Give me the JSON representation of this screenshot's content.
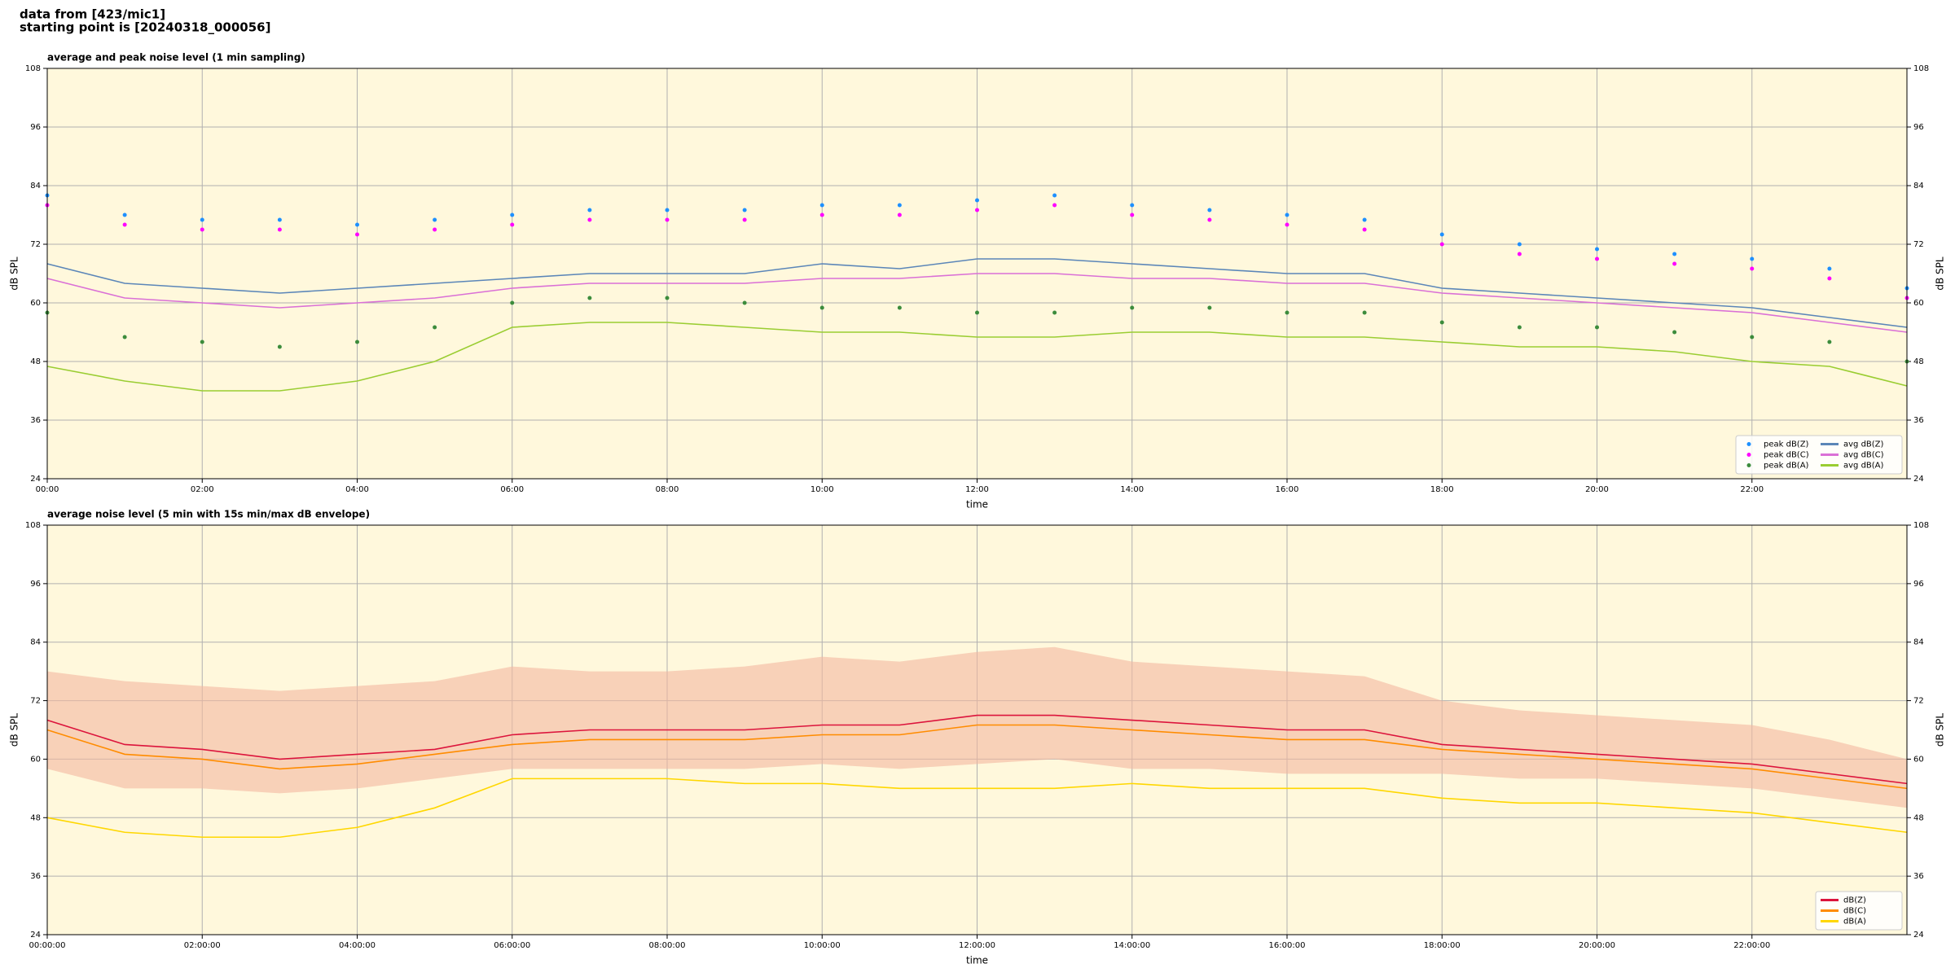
{
  "header": {
    "lines": [
      "data from [423/mic1]",
      "starting point is [20240318_000056]"
    ]
  },
  "chart_data": [
    {
      "type": "line",
      "title": "average and peak noise level (1 min sampling)",
      "xlabel": "time",
      "ylabel": "dB SPL",
      "x": [
        0,
        1,
        2,
        3,
        4,
        5,
        6,
        7,
        8,
        9,
        10,
        11,
        12,
        13,
        14,
        15,
        16,
        17,
        18,
        19,
        20,
        21,
        22,
        23,
        24
      ],
      "xlim": [
        0,
        24
      ],
      "xticks": [
        {
          "value": 0,
          "label": "00:00"
        },
        {
          "value": 2,
          "label": "02:00"
        },
        {
          "value": 4,
          "label": "04:00"
        },
        {
          "value": 6,
          "label": "06:00"
        },
        {
          "value": 8,
          "label": "08:00"
        },
        {
          "value": 10,
          "label": "10:00"
        },
        {
          "value": 12,
          "label": "12:00"
        },
        {
          "value": 14,
          "label": "14:00"
        },
        {
          "value": 16,
          "label": "16:00"
        },
        {
          "value": 18,
          "label": "18:00"
        },
        {
          "value": 20,
          "label": "20:00"
        },
        {
          "value": 22,
          "label": "22:00"
        }
      ],
      "ylim": [
        24,
        108
      ],
      "yticks": [
        24,
        36,
        48,
        60,
        72,
        84,
        96,
        108
      ],
      "grid": true,
      "legend": "lower right",
      "legend_columns": 2,
      "series": [
        {
          "name": "peak dB(Z)",
          "kind": "scatter",
          "color": "#1e90ff",
          "values": [
            82,
            78,
            77,
            77,
            76,
            77,
            78,
            79,
            79,
            79,
            80,
            80,
            81,
            82,
            80,
            79,
            78,
            77,
            74,
            72,
            71,
            70,
            69,
            67,
            63
          ]
        },
        {
          "name": "peak dB(C)",
          "kind": "scatter",
          "color": "#ff00ff",
          "values": [
            80,
            76,
            75,
            75,
            74,
            75,
            76,
            77,
            77,
            77,
            78,
            78,
            79,
            80,
            78,
            77,
            76,
            75,
            72,
            70,
            69,
            68,
            67,
            65,
            61
          ]
        },
        {
          "name": "peak dB(A)",
          "kind": "scatter",
          "color": "#3c8c3c",
          "values": [
            58,
            53,
            52,
            51,
            52,
            55,
            60,
            61,
            61,
            60,
            59,
            59,
            58,
            58,
            59,
            59,
            58,
            58,
            56,
            55,
            55,
            54,
            53,
            52,
            48
          ]
        },
        {
          "name": "avg dB(Z)",
          "kind": "line",
          "color": "#5b86b8",
          "values": [
            68,
            64,
            63,
            62,
            63,
            64,
            65,
            66,
            66,
            66,
            68,
            67,
            69,
            69,
            68,
            67,
            66,
            66,
            63,
            62,
            61,
            60,
            59,
            57,
            55
          ]
        },
        {
          "name": "avg dB(C)",
          "kind": "line",
          "color": "#da70d6",
          "values": [
            65,
            61,
            60,
            59,
            60,
            61,
            63,
            64,
            64,
            64,
            65,
            65,
            66,
            66,
            65,
            65,
            64,
            64,
            62,
            61,
            60,
            59,
            58,
            56,
            54
          ]
        },
        {
          "name": "avg dB(A)",
          "kind": "line",
          "color": "#9acd32",
          "values": [
            47,
            44,
            42,
            42,
            44,
            48,
            55,
            56,
            56,
            55,
            54,
            54,
            53,
            53,
            54,
            54,
            53,
            53,
            52,
            51,
            51,
            50,
            48,
            47,
            43
          ]
        }
      ]
    },
    {
      "type": "line",
      "title": "average noise level (5 min with 15s min/max dB envelope)",
      "xlabel": "time",
      "ylabel": "dB SPL",
      "x": [
        0,
        1,
        2,
        3,
        4,
        5,
        6,
        7,
        8,
        9,
        10,
        11,
        12,
        13,
        14,
        15,
        16,
        17,
        18,
        19,
        20,
        21,
        22,
        23,
        24
      ],
      "xlim": [
        0,
        24
      ],
      "xticks": [
        {
          "value": 0,
          "label": "00:00:00"
        },
        {
          "value": 2,
          "label": "02:00:00"
        },
        {
          "value": 4,
          "label": "04:00:00"
        },
        {
          "value": 6,
          "label": "06:00:00"
        },
        {
          "value": 8,
          "label": "08:00:00"
        },
        {
          "value": 10,
          "label": "10:00:00"
        },
        {
          "value": 12,
          "label": "12:00:00"
        },
        {
          "value": 14,
          "label": "14:00:00"
        },
        {
          "value": 16,
          "label": "16:00:00"
        },
        {
          "value": 18,
          "label": "18:00:00"
        },
        {
          "value": 20,
          "label": "20:00:00"
        },
        {
          "value": 22,
          "label": "22:00:00"
        }
      ],
      "ylim": [
        24,
        108
      ],
      "yticks": [
        24,
        36,
        48,
        60,
        72,
        84,
        96,
        108
      ],
      "grid": true,
      "legend": "lower right",
      "legend_columns": 1,
      "envelope": {
        "color": "#f4b8a0",
        "max": [
          78,
          76,
          75,
          74,
          75,
          76,
          79,
          78,
          78,
          79,
          81,
          80,
          82,
          83,
          80,
          79,
          78,
          77,
          72,
          70,
          69,
          68,
          67,
          64,
          60
        ],
        "min": [
          58,
          54,
          54,
          53,
          54,
          56,
          58,
          58,
          58,
          58,
          59,
          58,
          59,
          60,
          58,
          58,
          57,
          57,
          57,
          56,
          56,
          55,
          54,
          52,
          50
        ]
      },
      "series": [
        {
          "name": "dB(Z)",
          "kind": "line",
          "color": "#dc143c",
          "values": [
            68,
            63,
            62,
            60,
            61,
            62,
            65,
            66,
            66,
            66,
            67,
            67,
            69,
            69,
            68,
            67,
            66,
            66,
            63,
            62,
            61,
            60,
            59,
            57,
            55
          ]
        },
        {
          "name": "dB(C)",
          "kind": "line",
          "color": "#ff8c00",
          "values": [
            66,
            61,
            60,
            58,
            59,
            61,
            63,
            64,
            64,
            64,
            65,
            65,
            67,
            67,
            66,
            65,
            64,
            64,
            62,
            61,
            60,
            59,
            58,
            56,
            54
          ]
        },
        {
          "name": "dB(A)",
          "kind": "line",
          "color": "#ffd700",
          "values": [
            48,
            45,
            44,
            44,
            46,
            50,
            56,
            56,
            56,
            55,
            55,
            54,
            54,
            54,
            55,
            54,
            54,
            54,
            52,
            51,
            51,
            50,
            49,
            47,
            45
          ]
        }
      ]
    }
  ]
}
